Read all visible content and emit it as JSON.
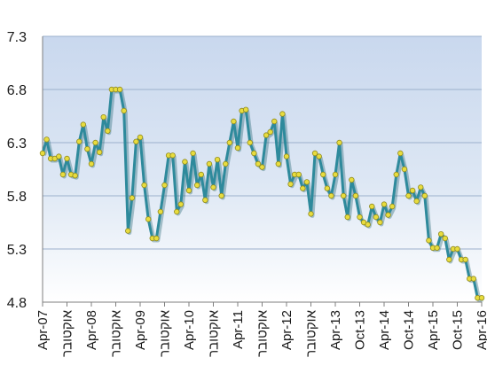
{
  "chart_data": {
    "type": "line",
    "title": "",
    "xlabel": "",
    "ylabel": "",
    "ylim": [
      4.8,
      7.3
    ],
    "yticks": [
      4.8,
      5.3,
      5.8,
      6.3,
      6.8,
      7.3
    ],
    "ytick_labels": [
      "4.8",
      "5.3",
      "5.8",
      "6.3",
      "6.8",
      "7.3"
    ],
    "grid": "horizontal",
    "legend": "none",
    "x_range": [
      0,
      108
    ],
    "xtick_positions": [
      0,
      6,
      12,
      18,
      24,
      30,
      36,
      42,
      48,
      54,
      60,
      66,
      72,
      78,
      84,
      90,
      96,
      102,
      108
    ],
    "xtick_labels": [
      "Apr-07",
      "אוקטובר",
      "Apr-08",
      "אוקטובר",
      "Apr-09",
      "אוקטובר",
      "Apr-10",
      "אוקטובר",
      "Apr-11",
      "אוקטובר",
      "Apr-12",
      "אוקטובר",
      "Apr-13",
      "Oct-13",
      "Apr-14",
      "Oct-14",
      "Apr-15",
      "Oct-15",
      "Apr-16"
    ],
    "colors": {
      "line": "#2e8a9c",
      "marker_fill": "#e8dc3e",
      "marker_stroke": "#8f8a1f",
      "plot_bg_top": "#c9d8ee",
      "plot_bg_bottom": "#ffffff",
      "grid": "#9bb0cc"
    },
    "series": [
      {
        "x": [
          0,
          1,
          2,
          3,
          4,
          5,
          6,
          7,
          8,
          9,
          10,
          11,
          12,
          13,
          14,
          15,
          16,
          17,
          18,
          19,
          20,
          21,
          22,
          23,
          24,
          25,
          26,
          27,
          28,
          29,
          30,
          31,
          32,
          33,
          34,
          35,
          36,
          37,
          38,
          39,
          40,
          41,
          42,
          43,
          44,
          45,
          46,
          47,
          48,
          49,
          50,
          51,
          52,
          53,
          54,
          55,
          56,
          57,
          58,
          59,
          60,
          61,
          62,
          63,
          64,
          65,
          66,
          67,
          68,
          69,
          70,
          71,
          72,
          73,
          74,
          75,
          76,
          77,
          78,
          79,
          80,
          81,
          82,
          83,
          84,
          85,
          86,
          87,
          88,
          89,
          90,
          91,
          92,
          93,
          94,
          95,
          96,
          97,
          98,
          99,
          100,
          101,
          102,
          103,
          104,
          105,
          106,
          107,
          108
        ],
        "values": [
          6.2,
          6.33,
          6.15,
          6.15,
          6.17,
          6.0,
          6.15,
          6.0,
          5.99,
          6.31,
          6.47,
          6.24,
          6.1,
          6.3,
          6.21,
          6.54,
          6.41,
          6.8,
          6.8,
          6.8,
          6.6,
          5.47,
          5.78,
          6.31,
          6.35,
          5.9,
          5.58,
          5.4,
          5.4,
          5.65,
          5.9,
          6.18,
          6.18,
          5.65,
          5.72,
          6.12,
          5.85,
          6.2,
          5.9,
          6.0,
          5.76,
          6.1,
          5.88,
          6.14,
          5.8,
          6.1,
          6.3,
          6.5,
          6.25,
          6.6,
          6.61,
          6.3,
          6.2,
          6.1,
          6.07,
          6.37,
          6.4,
          6.5,
          6.1,
          6.57,
          6.17,
          5.91,
          6.0,
          6.0,
          5.87,
          5.93,
          5.63,
          6.2,
          6.17,
          6.0,
          5.87,
          5.8,
          6.0,
          6.3,
          5.8,
          5.6,
          5.95,
          5.8,
          5.6,
          5.55,
          5.53,
          5.7,
          5.6,
          5.55,
          5.72,
          5.62,
          5.7,
          6.0,
          6.2,
          6.05,
          5.8,
          5.85,
          5.75,
          5.88,
          5.8,
          5.38,
          5.31,
          5.31,
          5.44,
          5.4,
          5.2,
          5.3,
          5.3,
          5.2,
          5.2,
          5.02,
          5.02,
          4.84,
          4.84
        ]
      }
    ]
  }
}
